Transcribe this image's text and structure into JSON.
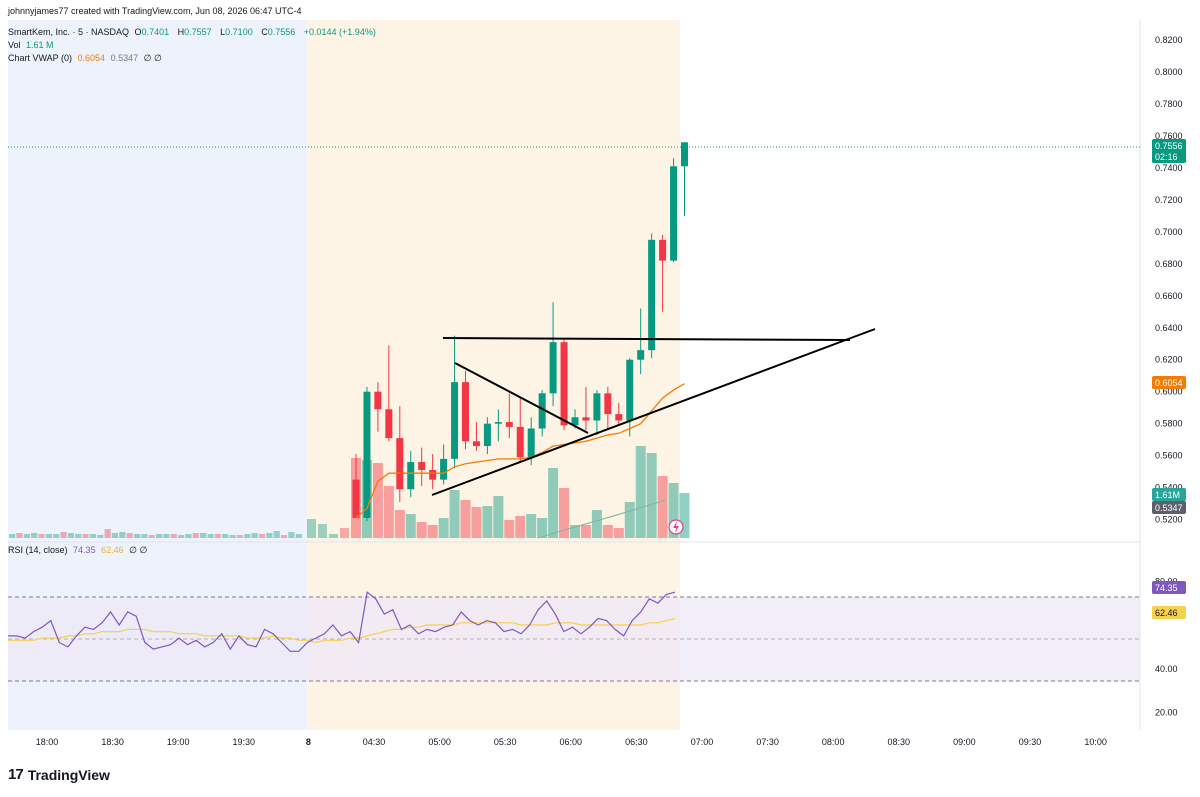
{
  "header": {
    "attribution": "johnnyjames77 created with TradingView.com, Jun 08, 2026 06:47 UTC-4",
    "symbol": "SmartKem, Inc. · 5 · NASDAQ",
    "o_label": "O",
    "o_value": "0.7401",
    "h_label": "H",
    "h_value": "0.7557",
    "l_label": "L",
    "l_value": "0.7100",
    "c_label": "C",
    "c_value": "0.7556",
    "change": "+0.0144 (+1.94%)",
    "vol_label": "Vol",
    "vol_value": "1.61 M",
    "vwap_label": "Chart VWAP (0)",
    "vwap_value1": "0.6054",
    "vwap_value2": "0.5347",
    "vwap_extra": "∅ ∅",
    "rsi_label": "RSI (14, close)",
    "rsi_value1": "74.35",
    "rsi_value2": "62.46",
    "rsi_extra": "∅ ∅"
  },
  "brand": {
    "logo": "17",
    "name": "TradingView"
  },
  "colors": {
    "up": "#089981",
    "down": "#f23645",
    "vwap": "#f57c00",
    "rsi": "#7e57c2",
    "rsi_ma": "#f5d14e",
    "premarket": "#eef2fd",
    "regular": "#fdf4e6",
    "rsi_band": "#ede8f7"
  },
  "chart_data": [
    {
      "type": "candlestick",
      "title": "SmartKem, Inc. · 5 · NASDAQ",
      "y_axis_ticks": [
        "0.5200",
        "0.5400",
        "0.5600",
        "0.5800",
        "0.6000",
        "0.6200",
        "0.6400",
        "0.6600",
        "0.6800",
        "0.7000",
        "0.7200",
        "0.7400",
        "0.7600",
        "0.7800",
        "0.8000",
        "0.8200"
      ],
      "x_axis_ticks": [
        "18:00",
        "18:30",
        "19:00",
        "19:30",
        "8",
        "04:30",
        "05:00",
        "05:30",
        "06:00",
        "06:30",
        "07:00",
        "07:30",
        "08:00",
        "08:30",
        "09:00",
        "09:30",
        "10:00"
      ],
      "ylim": [
        0.5135,
        0.8325
      ],
      "price_label": {
        "value": "0.7556",
        "countdown": "02:16"
      },
      "vwap_label": "0.6054",
      "volume_label": "1.61M",
      "volume_ma_label": "0.5347",
      "candles": [
        {
          "o": 0.545,
          "h": 0.561,
          "l": 0.521,
          "c": 0.521
        },
        {
          "o": 0.521,
          "h": 0.603,
          "l": 0.519,
          "c": 0.6
        },
        {
          "o": 0.6,
          "h": 0.606,
          "l": 0.575,
          "c": 0.589
        },
        {
          "o": 0.589,
          "h": 0.629,
          "l": 0.569,
          "c": 0.571
        },
        {
          "o": 0.571,
          "h": 0.591,
          "l": 0.531,
          "c": 0.539
        },
        {
          "o": 0.539,
          "h": 0.563,
          "l": 0.534,
          "c": 0.556
        },
        {
          "o": 0.556,
          "h": 0.565,
          "l": 0.541,
          "c": 0.551
        },
        {
          "o": 0.551,
          "h": 0.561,
          "l": 0.539,
          "c": 0.545
        },
        {
          "o": 0.545,
          "h": 0.567,
          "l": 0.542,
          "c": 0.558
        },
        {
          "o": 0.558,
          "h": 0.635,
          "l": 0.552,
          "c": 0.606
        },
        {
          "o": 0.606,
          "h": 0.613,
          "l": 0.564,
          "c": 0.569
        },
        {
          "o": 0.569,
          "h": 0.581,
          "l": 0.563,
          "c": 0.566
        },
        {
          "o": 0.566,
          "h": 0.584,
          "l": 0.561,
          "c": 0.58
        },
        {
          "o": 0.58,
          "h": 0.589,
          "l": 0.569,
          "c": 0.581
        },
        {
          "o": 0.581,
          "h": 0.599,
          "l": 0.571,
          "c": 0.578
        },
        {
          "o": 0.578,
          "h": 0.597,
          "l": 0.556,
          "c": 0.559
        },
        {
          "o": 0.559,
          "h": 0.584,
          "l": 0.554,
          "c": 0.577
        },
        {
          "o": 0.577,
          "h": 0.601,
          "l": 0.572,
          "c": 0.599
        },
        {
          "o": 0.599,
          "h": 0.656,
          "l": 0.591,
          "c": 0.631
        },
        {
          "o": 0.631,
          "h": 0.633,
          "l": 0.576,
          "c": 0.579
        },
        {
          "o": 0.579,
          "h": 0.589,
          "l": 0.577,
          "c": 0.584
        },
        {
          "o": 0.584,
          "h": 0.603,
          "l": 0.576,
          "c": 0.582
        },
        {
          "o": 0.582,
          "h": 0.601,
          "l": 0.573,
          "c": 0.599
        },
        {
          "o": 0.599,
          "h": 0.603,
          "l": 0.576,
          "c": 0.586
        },
        {
          "o": 0.586,
          "h": 0.593,
          "l": 0.579,
          "c": 0.582
        },
        {
          "o": 0.582,
          "h": 0.621,
          "l": 0.572,
          "c": 0.62
        },
        {
          "o": 0.62,
          "h": 0.652,
          "l": 0.611,
          "c": 0.626
        },
        {
          "o": 0.626,
          "h": 0.699,
          "l": 0.621,
          "c": 0.695
        },
        {
          "o": 0.695,
          "h": 0.698,
          "l": 0.65,
          "c": 0.682
        },
        {
          "o": 0.682,
          "h": 0.746,
          "l": 0.681,
          "c": 0.741
        },
        {
          "o": 0.741,
          "h": 0.756,
          "l": 0.71,
          "c": 0.756
        }
      ],
      "vwap": [
        0.521,
        0.527,
        0.544,
        0.549,
        0.549,
        0.549,
        0.549,
        0.549,
        0.549,
        0.553,
        0.555,
        0.556,
        0.557,
        0.558,
        0.558,
        0.558,
        0.559,
        0.562,
        0.566,
        0.567,
        0.568,
        0.569,
        0.571,
        0.573,
        0.574,
        0.577,
        0.58,
        0.588,
        0.596,
        0.601,
        0.605
      ]
    },
    {
      "type": "line",
      "title": "RSI (14, close)",
      "y_axis_ticks": [
        "20.00",
        "40.00",
        "80.00"
      ],
      "ylim": [
        12,
        92
      ],
      "bands": [
        70,
        50,
        30
      ],
      "rsi_label": "74.35",
      "ma_label": "62.46"
    }
  ]
}
